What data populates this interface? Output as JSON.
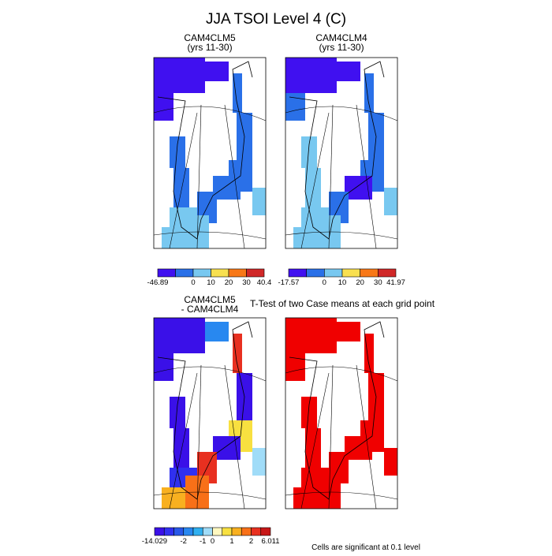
{
  "title": "JJA TSOI Level 4 (C)",
  "panels": [
    {
      "title": [
        "CAM4CLM5",
        "(yrs 11-30)"
      ],
      "colorbar": {
        "colors": [
          "#4010f0",
          "#2a70e8",
          "#78c8f0",
          "#f8e050",
          "#f87818",
          "#d02828"
        ],
        "labels": [
          -46.89,
          0,
          10,
          20,
          30,
          40.4
        ]
      }
    },
    {
      "title": [
        "CAM4CLM4",
        "(yrs 11-30)"
      ],
      "colorbar": {
        "colors": [
          "#4010f0",
          "#2a70e8",
          "#78c8f0",
          "#f8e050",
          "#f87818",
          "#d02828"
        ],
        "labels": [
          -17.57,
          0,
          10,
          20,
          30,
          41.97
        ]
      }
    },
    {
      "title": [
        "CAM4CLM5",
        "- CAM4CLM4"
      ],
      "colorbar": {
        "colors": [
          "#3a10e8",
          "#3030f0",
          "#2858e8",
          "#2888f0",
          "#30b0f0",
          "#a0dcf8",
          "#fff8c0",
          "#f8e040",
          "#f8b020",
          "#f87018",
          "#e83020",
          "#c81818"
        ],
        "labels": [
          -14.029,
          -2,
          -1,
          0,
          1,
          2,
          6.011
        ]
      }
    },
    {
      "title": [
        "T-Test of two Case means at each grid point"
      ]
    }
  ],
  "note": "Cells are significant at 0.1 level"
}
